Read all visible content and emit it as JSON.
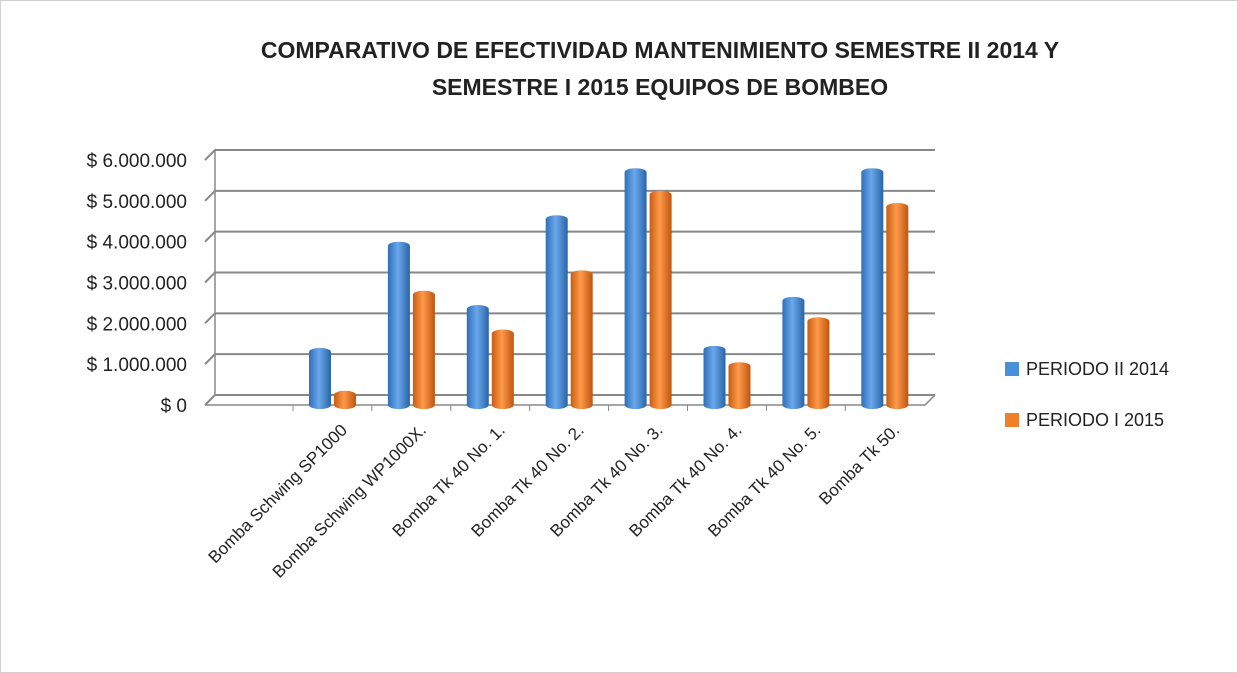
{
  "chart_data": {
    "type": "bar",
    "title": [
      "COMPARATIVO DE EFECTIVIDAD MANTENIMIENTO SEMESTRE II 2014 Y",
      "SEMESTRE I 2015 EQUIPOS DE BOMBEO"
    ],
    "categories": [
      "Bomba Schwing SP1000",
      "Bomba Schwing WP1000X.",
      "Bomba Tk 40 No. 1.",
      "Bomba Tk 40 No. 2.",
      "Bomba Tk 40 No. 3.",
      "Bomba Tk 40 No. 4.",
      "Bomba Tk 40 No. 5.",
      "Bomba Tk 50."
    ],
    "series": [
      {
        "name": "PERIODO II 2014",
        "color": "#4a8fd8",
        "values": [
          1300000,
          3900000,
          2350000,
          4550000,
          5700000,
          1350000,
          2550000,
          5700000
        ]
      },
      {
        "name": "PERIODO I 2015",
        "color": "#f07f2a",
        "values": [
          250000,
          2700000,
          1750000,
          3200000,
          5150000,
          950000,
          2050000,
          4850000
        ]
      }
    ],
    "ylim": [
      0,
      6000000
    ],
    "yticks": [
      {
        "value": 0,
        "label": "$ 0"
      },
      {
        "value": 1000000,
        "label": "$ 1.000.000"
      },
      {
        "value": 2000000,
        "label": "$ 2.000.000"
      },
      {
        "value": 3000000,
        "label": "$ 3.000.000"
      },
      {
        "value": 4000000,
        "label": "$ 4.000.000"
      },
      {
        "value": 5000000,
        "label": "$ 5.000.000"
      },
      {
        "value": 6000000,
        "label": "$ 6.000.000"
      }
    ],
    "grid": true,
    "legend": "right"
  }
}
